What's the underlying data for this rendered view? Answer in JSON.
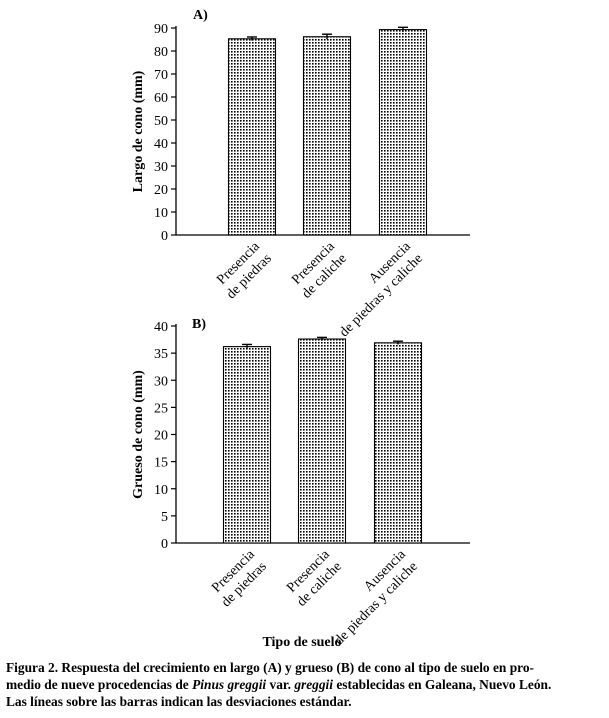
{
  "chart_data": [
    {
      "type": "bar",
      "panel_label": "A)",
      "ylabel": "Largo de cono (mm)",
      "xlabel": "",
      "ylim": [
        0,
        90
      ],
      "yticks": [
        0,
        10,
        20,
        30,
        40,
        50,
        60,
        70,
        80,
        90
      ],
      "categories": [
        [
          "Presencia",
          "de piedras"
        ],
        [
          "Presencia",
          "de caliche"
        ],
        [
          "Ausencia",
          "de piedras y caliche"
        ]
      ],
      "values": [
        85.3,
        86.2,
        89.3
      ],
      "errors": [
        0.8,
        1.1,
        1.0
      ]
    },
    {
      "type": "bar",
      "panel_label": "B)",
      "ylabel": "Grueso de cono (mm)",
      "xlabel": "Tipo de suelo",
      "ylim": [
        0,
        40
      ],
      "yticks": [
        0,
        5,
        10,
        15,
        20,
        25,
        30,
        35,
        40
      ],
      "categories": [
        [
          "Presencia",
          "de piedras"
        ],
        [
          "Presencia",
          "de caliche"
        ],
        [
          "Ausencia",
          "de piedras y caliche"
        ]
      ],
      "values": [
        36.2,
        37.6,
        36.9
      ],
      "errors": [
        0.4,
        0.3,
        0.3
      ]
    }
  ],
  "caption": {
    "line1": "Figura 2. Respuesta del crecimiento en largo (A) y grueso (B) de cono al tipo de suelo en pro-",
    "line2_a": "medio de nueve procedencias de ",
    "line2_species": "Pinus greggii",
    "line2_b": " var. ",
    "line2_variety": "greggii",
    "line2_c": " establecidas en Galeana, Nuevo León.",
    "line3": "Las líneas sobre las barras indican las desviaciones estándar."
  }
}
